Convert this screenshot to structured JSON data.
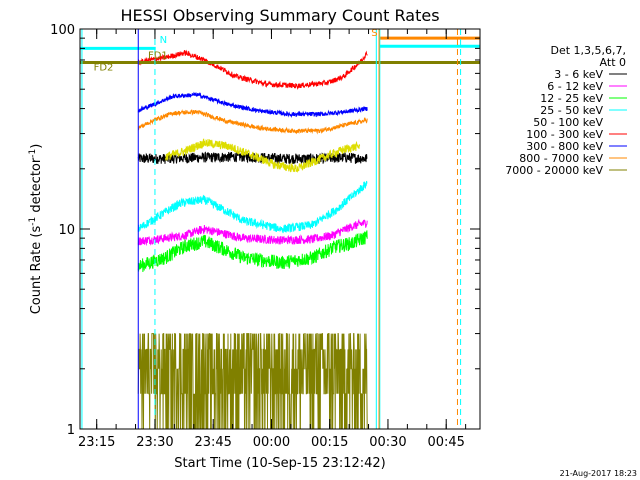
{
  "chart_data": {
    "type": "line",
    "title": "HESSI Observing Summary Count Rates",
    "xlabel": "Start Time (10-Sep-15 23:12:42)",
    "ylabel": "Count Rate (s",
    "ylabel_sup": "-1",
    "ylabel_mid": " detector",
    "ylabel_sup2": "-1",
    "ylabel_end": ")",
    "yscale": "log",
    "ylim": [
      1,
      100
    ],
    "xlim_minutes": [
      -2,
      101
    ],
    "x_tick_labels": [
      "23:15",
      "23:30",
      "23:45",
      "00:00",
      "00:15",
      "00:30",
      "00:45"
    ],
    "x_tick_minutes": [
      2.3,
      17.3,
      32.3,
      47.3,
      62.3,
      77.3,
      92.3
    ],
    "y_tick_labels": [
      "1",
      "10",
      "100"
    ],
    "y_tick_values": [
      1,
      10,
      100
    ],
    "footer_date": "21-Aug-2017 18:23",
    "legend": {
      "header_line1": "Det 1,3,5,6,7,",
      "header_line2": "Att 0",
      "placement": "right"
    },
    "data_interval_minutes": [
      13,
      72
    ],
    "series": [
      {
        "name": "3 - 6 keV",
        "color": "#000000",
        "x": [
          13,
          20,
          30,
          40,
          50,
          60,
          66,
          72
        ],
        "values": [
          22.5,
          22.5,
          22.8,
          23.0,
          22.5,
          22.5,
          22.8,
          22.5
        ],
        "noise": 0.06
      },
      {
        "name": "6 - 12 keV",
        "color": "#ff00ff",
        "x": [
          13,
          20,
          25,
          30,
          40,
          50,
          58,
          63,
          68,
          72
        ],
        "values": [
          8.7,
          9.0,
          9.3,
          10.0,
          9.0,
          8.8,
          8.9,
          9.3,
          10.3,
          10.8
        ],
        "noise": 0.05
      },
      {
        "name": "12 - 25 keV",
        "color": "#00ff00",
        "x": [
          13,
          20,
          25,
          30,
          40,
          50,
          58,
          64,
          68,
          72
        ],
        "values": [
          6.5,
          7.2,
          8.2,
          8.7,
          7.2,
          6.8,
          7.2,
          8.2,
          8.5,
          9.2
        ],
        "noise": 0.08
      },
      {
        "name": "25 - 50 keV",
        "color": "#00ffff",
        "x": [
          13,
          18,
          24,
          30,
          40,
          50,
          58,
          64,
          68,
          72
        ],
        "values": [
          10.0,
          11.5,
          13.5,
          14.0,
          11.0,
          10.0,
          10.5,
          12.5,
          14.5,
          17.0
        ],
        "noise": 0.05
      },
      {
        "name": "50 - 100 keV",
        "color": "#dddd00",
        "x": [
          20,
          25,
          30,
          36,
          42,
          48,
          54,
          60,
          66,
          70
        ],
        "values": [
          23.0,
          24.5,
          27.0,
          26.0,
          23.5,
          21.0,
          20.0,
          22.5,
          25.0,
          26.0
        ],
        "noise": 0.05,
        "no_legend_line": true
      },
      {
        "name": "100 - 300 keV",
        "color": "#ff0000",
        "x": [
          13,
          16,
          20,
          25,
          30,
          38,
          46,
          54,
          62,
          66,
          70,
          72
        ],
        "values": [
          68,
          70,
          72,
          76,
          70,
          58,
          53,
          52,
          54,
          58,
          68,
          76
        ],
        "noise": 0.03
      },
      {
        "name": "300 - 800 keV",
        "color": "#0000ff",
        "x": [
          13,
          17,
          22,
          28,
          36,
          44,
          52,
          60,
          66,
          72
        ],
        "values": [
          39.0,
          42.0,
          46.0,
          47.0,
          42.0,
          39.0,
          37.5,
          37.5,
          38.5,
          40.0
        ],
        "noise": 0.025
      },
      {
        "name": "800 - 7000 keV",
        "color": "#ff8800",
        "x": [
          13,
          17,
          22,
          28,
          36,
          44,
          52,
          60,
          66,
          72
        ],
        "values": [
          32.0,
          35.0,
          38.0,
          38.5,
          34.5,
          32.0,
          31.0,
          31.0,
          33.0,
          35.0
        ],
        "noise": 0.025
      },
      {
        "name": "7000 - 20000 keV",
        "color": "#808000",
        "x": [
          13,
          72
        ],
        "values": [
          1.5,
          1.5
        ],
        "noise": 0.0,
        "stepped": true
      }
    ],
    "reference_lines": [
      {
        "color": "#00ffff",
        "y_value": 80.0,
        "x_from": -2,
        "x_to": 17.5
      },
      {
        "color": "#808000",
        "y_value": 68.0,
        "x_from": -2,
        "x_to": 101
      },
      {
        "color": "#00ffff",
        "y_value": 82.0,
        "x_from": 75.0,
        "x_to": 101
      },
      {
        "color": "#ff8800",
        "y_value": 90.0,
        "x_from": 75.0,
        "x_to": 101
      }
    ],
    "vertical_markers": [
      {
        "color": "#00ffff",
        "x": -1.5,
        "dash": false
      },
      {
        "color": "#00ffff",
        "x": 17.3,
        "dash": true
      },
      {
        "color": "#0000ff",
        "x": 13.0,
        "dash": false
      },
      {
        "color": "#00ffff",
        "x": 74.3,
        "dash": false
      },
      {
        "color": "#00ffff",
        "x": 75.2,
        "dash": false
      },
      {
        "color": "#ff8800",
        "x": 75.0,
        "dash": false
      },
      {
        "color": "#ff8800",
        "x": 95.2,
        "dash": true
      },
      {
        "color": "#00ffff",
        "x": 96.0,
        "dash": true
      }
    ],
    "annotations": [
      {
        "text": "N",
        "color": "#00ffff",
        "x": 18.5,
        "y_value": 85
      },
      {
        "text": "S",
        "color": "#ff8800",
        "x": 73.0,
        "y_value": 92
      },
      {
        "text": "FD1",
        "color": "#808000",
        "x": 15.5,
        "y_value": 71
      },
      {
        "text": "FD2",
        "color": "#808000",
        "x": 1.5,
        "y_value": 62
      }
    ]
  }
}
